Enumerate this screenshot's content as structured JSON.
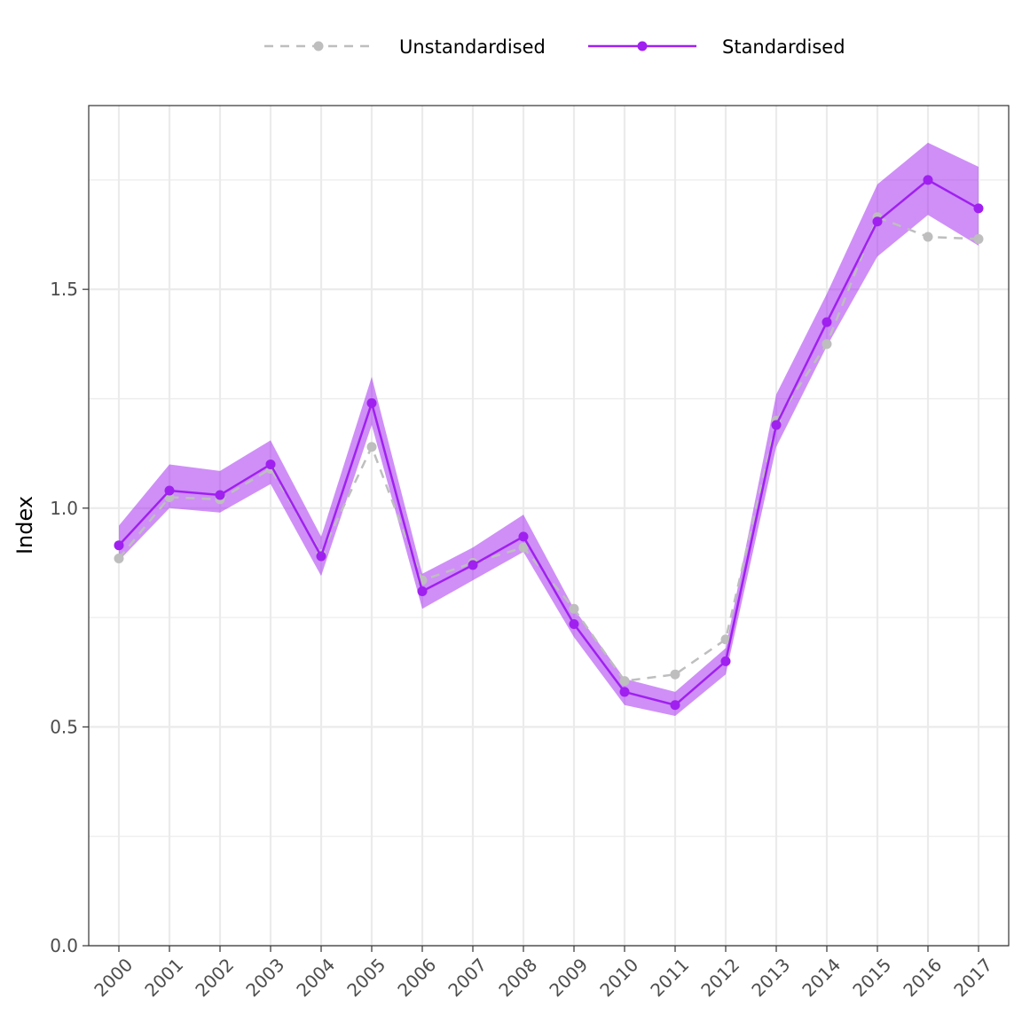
{
  "chart_data": {
    "type": "line",
    "title": "",
    "xlabel": "",
    "ylabel": "Index",
    "ylim": [
      0,
      1.92
    ],
    "y_ticks": [
      0.0,
      0.5,
      1.0,
      1.5
    ],
    "y_tick_labels": [
      "0.0",
      "0.5",
      "1.0",
      "1.5"
    ],
    "grid": true,
    "legend_position": "top",
    "categories": [
      "2000",
      "2001",
      "2002",
      "2003",
      "2004",
      "2005",
      "2006",
      "2007",
      "2008",
      "2009",
      "2010",
      "2011",
      "2012",
      "2013",
      "2014",
      "2015",
      "2016",
      "2017"
    ],
    "series": [
      {
        "name": "Unstandardised",
        "color": "#bebebe",
        "style": "dashed",
        "values": [
          0.885,
          1.025,
          1.02,
          1.09,
          0.895,
          1.14,
          0.835,
          0.875,
          0.91,
          0.77,
          0.605,
          0.62,
          0.7,
          1.2,
          1.375,
          1.665,
          1.62,
          1.615
        ]
      },
      {
        "name": "Standardised",
        "color": "#a020f0",
        "style": "solid",
        "values": [
          0.915,
          1.04,
          1.03,
          1.1,
          0.89,
          1.24,
          0.81,
          0.87,
          0.935,
          0.735,
          0.58,
          0.55,
          0.65,
          1.19,
          1.425,
          1.655,
          1.75,
          1.685
        ],
        "lower": [
          0.88,
          1.0,
          0.99,
          1.055,
          0.845,
          1.19,
          0.77,
          0.835,
          0.9,
          0.705,
          0.55,
          0.525,
          0.62,
          1.14,
          1.37,
          1.575,
          1.67,
          1.6
        ],
        "upper": [
          0.96,
          1.1,
          1.085,
          1.155,
          0.935,
          1.3,
          0.85,
          0.91,
          0.985,
          0.77,
          0.61,
          0.58,
          0.68,
          1.26,
          1.49,
          1.74,
          1.835,
          1.78
        ]
      }
    ]
  }
}
